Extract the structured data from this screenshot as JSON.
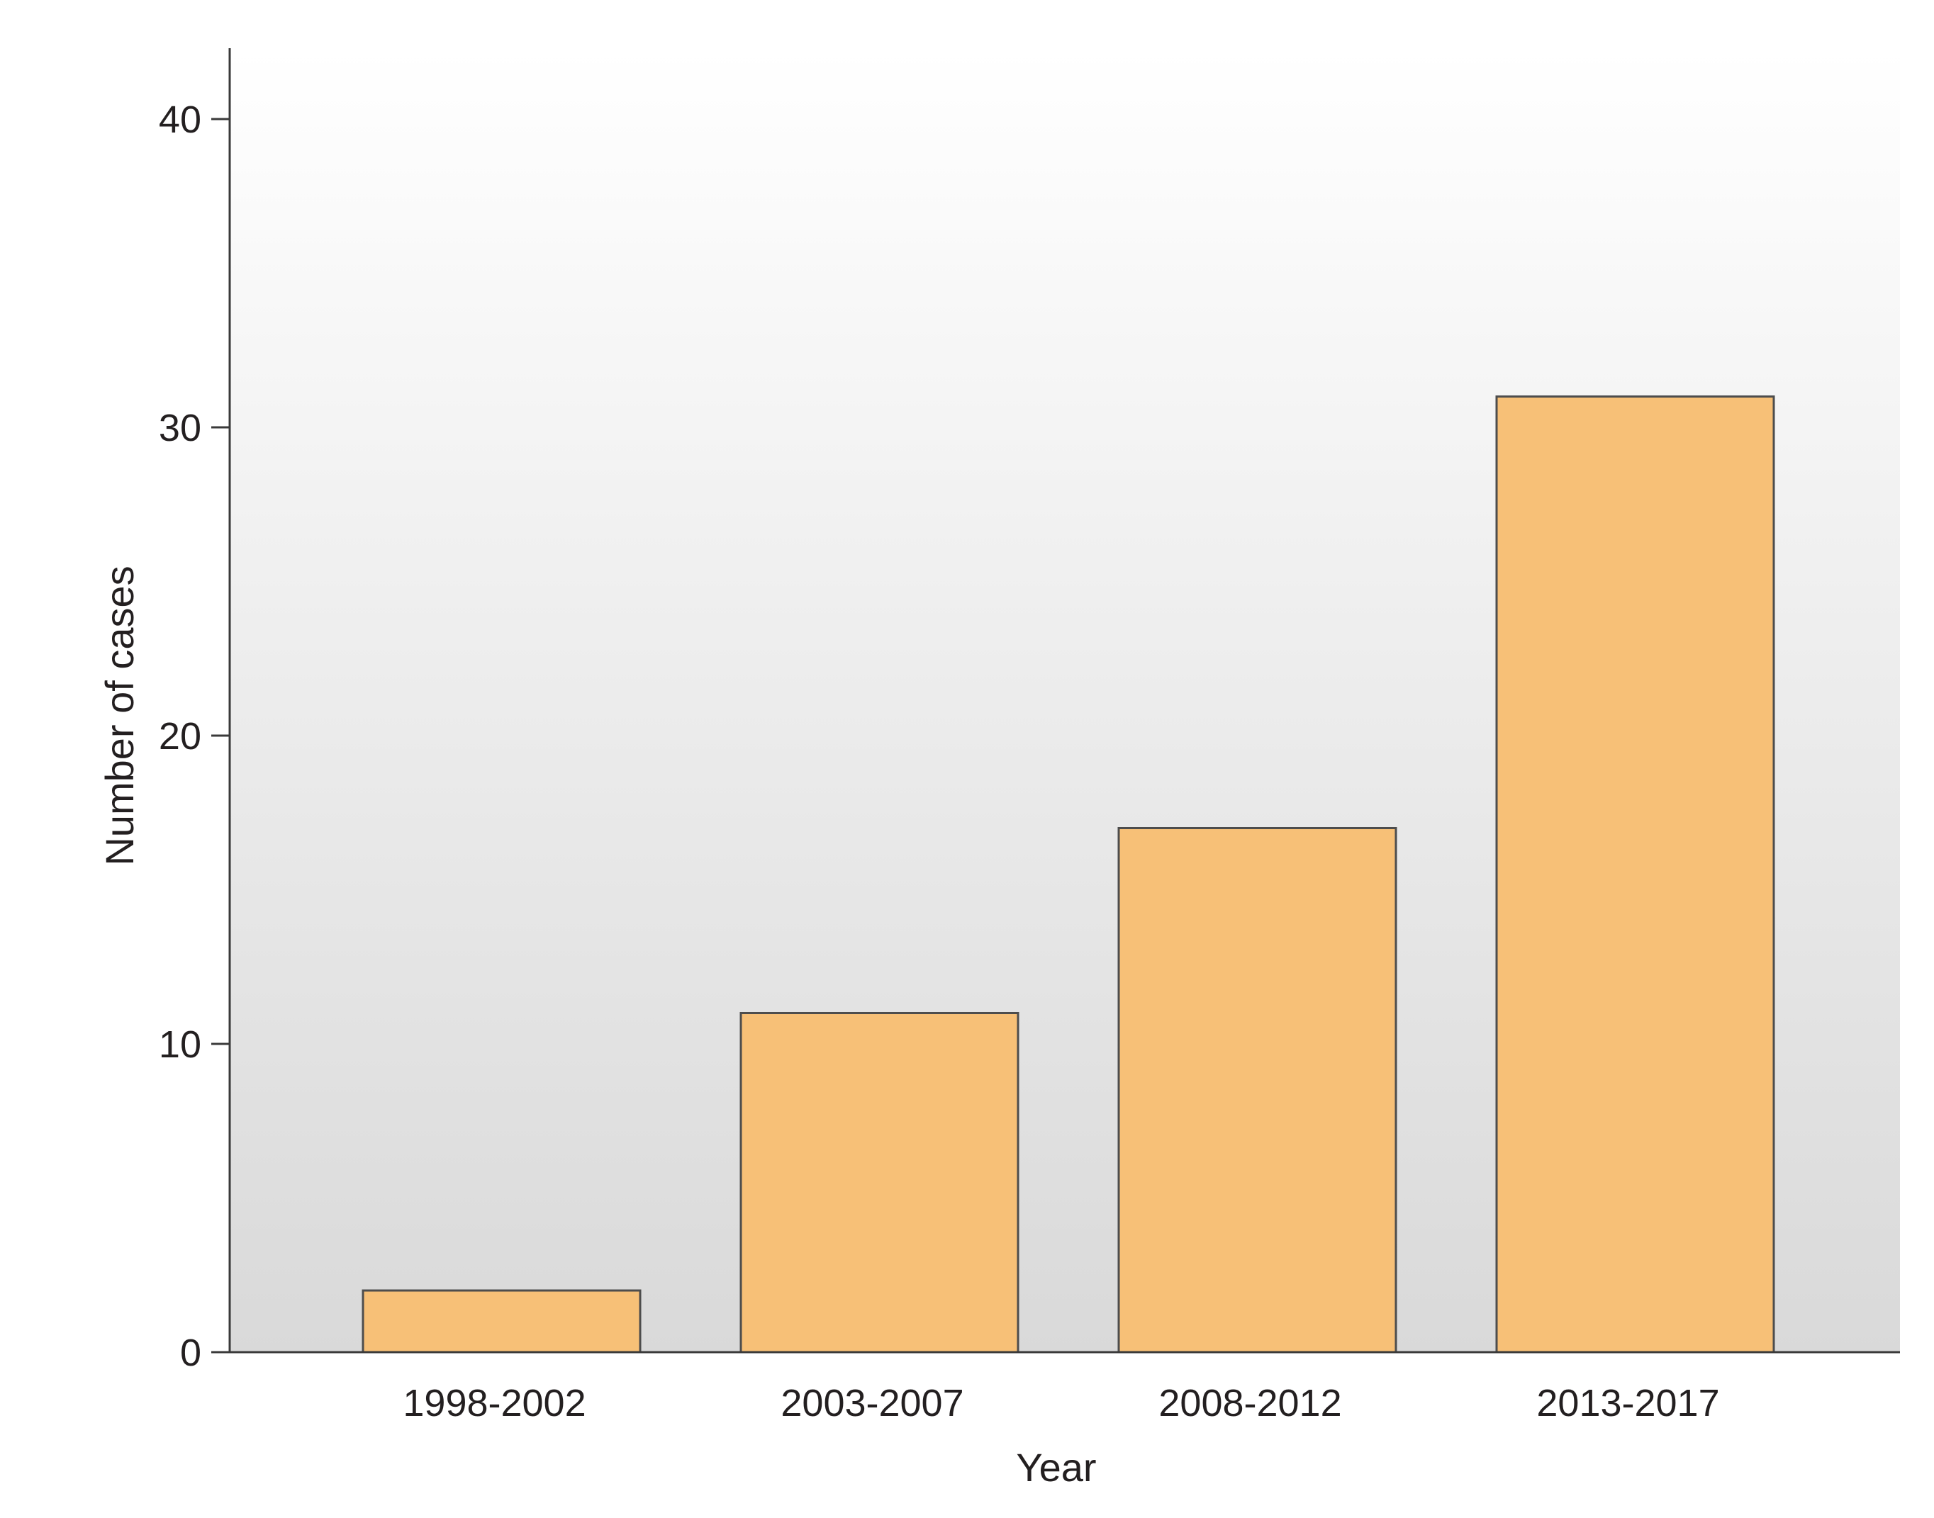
{
  "chart_data": {
    "type": "bar",
    "categories": [
      "1998-2002",
      "2003-2007",
      "2008-2012",
      "2013-2017"
    ],
    "values": [
      2,
      11,
      17,
      31
    ],
    "title": "",
    "xlabel": "Year",
    "ylabel": "Number of cases",
    "ylim": [
      0,
      42
    ],
    "yticks": [
      0,
      10,
      20,
      30,
      40
    ],
    "grid": false,
    "legend": "none",
    "colors": {
      "bar_fill": "#f7c077",
      "bar_stroke": "#4d4d4d",
      "background_top": "#ffffff",
      "background_bottom": "#d9d9d9"
    }
  }
}
